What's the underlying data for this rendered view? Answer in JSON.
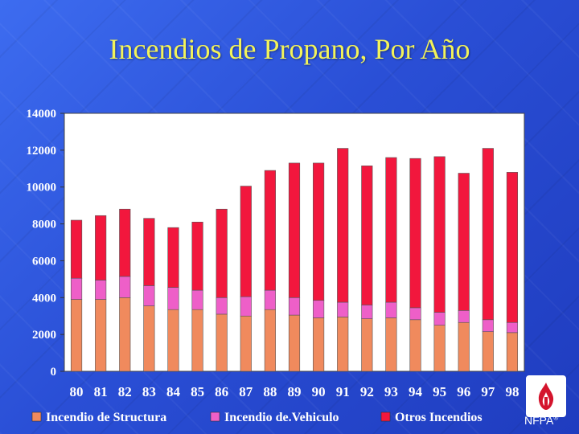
{
  "title": "Incendios de Propano, Por Año",
  "logo": {
    "text": "NFPA",
    "mark": "®"
  },
  "colors": {
    "structure": "#f08a5d",
    "vehicle": "#ee5fc8",
    "other": "#f2173d",
    "plot_bg": "#ffffff",
    "title": "#f3f35a"
  },
  "chart_data": {
    "type": "bar",
    "stacked": true,
    "title": "Incendios de Propano, Por Año",
    "xlabel": "",
    "ylabel": "",
    "ylim": [
      0,
      14000
    ],
    "yticks": [
      0,
      2000,
      4000,
      6000,
      8000,
      10000,
      12000,
      14000
    ],
    "categories": [
      "80",
      "81",
      "82",
      "83",
      "84",
      "85",
      "86",
      "87",
      "88",
      "89",
      "90",
      "91",
      "92",
      "93",
      "94",
      "95",
      "96",
      "97",
      "98"
    ],
    "series": [
      {
        "name": "Incendio de Structura",
        "color": "#f08a5d",
        "values": [
          3900,
          3900,
          4000,
          3550,
          3350,
          3350,
          3100,
          3000,
          3350,
          3050,
          2900,
          2950,
          2850,
          2900,
          2800,
          2500,
          2650,
          2150,
          2100
        ]
      },
      {
        "name": "Incendio de.Vehiculo",
        "color": "#ee5fc8",
        "values": [
          1150,
          1050,
          1150,
          1100,
          1200,
          1050,
          900,
          1050,
          1050,
          950,
          950,
          800,
          750,
          850,
          650,
          700,
          650,
          650,
          550
        ]
      },
      {
        "name": "Otros Incendios",
        "color": "#f2173d",
        "values": [
          3150,
          3500,
          3650,
          3650,
          3250,
          3700,
          4800,
          6000,
          6500,
          7300,
          7450,
          8350,
          7550,
          7850,
          8100,
          8450,
          7450,
          9300,
          8150
        ]
      }
    ],
    "legend_position": "bottom"
  }
}
